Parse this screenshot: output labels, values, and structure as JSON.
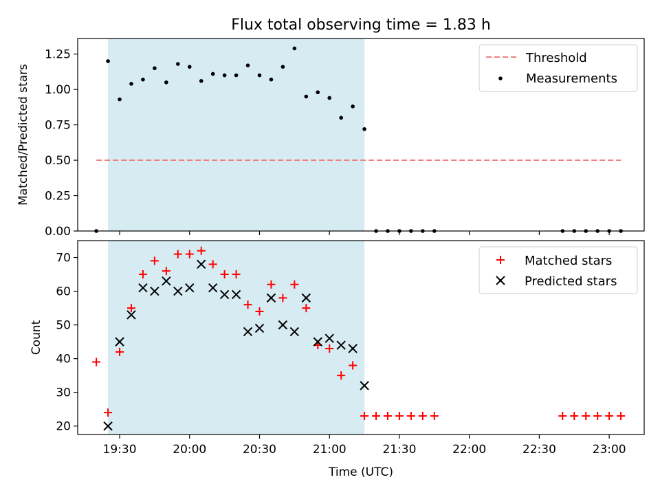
{
  "chart_data": [
    {
      "type": "scatter",
      "title": "Flux total observing time = 1.83 h",
      "xlabel": "",
      "ylabel": "Matched/Predicted stars",
      "ylim": [
        0.0,
        1.36
      ],
      "yticks": [
        0.0,
        0.25,
        0.5,
        0.75,
        1.0,
        1.25
      ],
      "ytick_labels": [
        "0.00",
        "0.25",
        "0.50",
        "0.75",
        "1.00",
        "1.25"
      ],
      "xlim": [
        "19:12",
        "23:15"
      ],
      "xticks": [
        "19:30",
        "20:00",
        "20:30",
        "21:00",
        "21:30",
        "22:00",
        "22:30",
        "23:00"
      ],
      "shaded_interval": {
        "x": [
          "19:25",
          "21:15"
        ],
        "color": "#add8e6"
      },
      "legend_position": "top-right",
      "grid": false,
      "series": [
        {
          "name": "Threshold",
          "kind": "dashed-line",
          "color": "#f08080",
          "x": [
            "19:20",
            "23:05"
          ],
          "y": [
            0.5,
            0.5
          ]
        },
        {
          "name": "Measurements",
          "kind": "dot",
          "color": "#000000",
          "x": [
            "19:20",
            "19:25",
            "19:30",
            "19:35",
            "19:40",
            "19:45",
            "19:50",
            "19:55",
            "20:00",
            "20:05",
            "20:10",
            "20:15",
            "20:20",
            "20:25",
            "20:30",
            "20:35",
            "20:40",
            "20:45",
            "20:50",
            "20:55",
            "21:00",
            "21:05",
            "21:10",
            "21:15",
            "21:20",
            "21:25",
            "21:30",
            "21:35",
            "21:40",
            "21:45",
            "22:40",
            "22:45",
            "22:50",
            "22:55",
            "23:00",
            "23:05"
          ],
          "y": [
            0.0,
            1.2,
            0.93,
            1.04,
            1.07,
            1.15,
            1.05,
            1.18,
            1.16,
            1.06,
            1.11,
            1.1,
            1.1,
            1.17,
            1.1,
            1.07,
            1.16,
            1.29,
            0.95,
            0.98,
            0.94,
            0.8,
            0.88,
            0.72,
            0.0,
            0.0,
            0.0,
            0.0,
            0.0,
            0.0,
            0.0,
            0.0,
            0.0,
            0.0,
            0.0,
            0.0
          ]
        }
      ]
    },
    {
      "type": "scatter",
      "title": "",
      "xlabel": "Time (UTC)",
      "ylabel": "Count",
      "ylim": [
        17.5,
        75.0
      ],
      "yticks": [
        20,
        30,
        40,
        50,
        60,
        70
      ],
      "ytick_labels": [
        "20",
        "30",
        "40",
        "50",
        "60",
        "70"
      ],
      "xlim": [
        "19:12",
        "23:15"
      ],
      "xticks": [
        "19:30",
        "20:00",
        "20:30",
        "21:00",
        "21:30",
        "22:00",
        "22:30",
        "23:00"
      ],
      "xtick_labels": [
        "19:30",
        "20:00",
        "20:30",
        "21:00",
        "21:30",
        "22:00",
        "22:30",
        "23:00"
      ],
      "shaded_interval": {
        "x": [
          "19:25",
          "21:15"
        ],
        "color": "#add8e6"
      },
      "legend_position": "top-right",
      "grid": false,
      "series": [
        {
          "name": "Matched stars",
          "kind": "plus",
          "color": "#ff0000",
          "x": [
            "19:20",
            "19:25",
            "19:30",
            "19:35",
            "19:40",
            "19:45",
            "19:50",
            "19:55",
            "20:00",
            "20:05",
            "20:10",
            "20:15",
            "20:20",
            "20:25",
            "20:30",
            "20:35",
            "20:40",
            "20:45",
            "20:50",
            "20:55",
            "21:00",
            "21:05",
            "21:10",
            "21:15",
            "21:20",
            "21:25",
            "21:30",
            "21:35",
            "21:40",
            "21:45",
            "22:40",
            "22:45",
            "22:50",
            "22:55",
            "23:00",
            "23:05"
          ],
          "y": [
            39,
            24,
            42,
            55,
            65,
            69,
            66,
            71,
            71,
            72,
            68,
            65,
            65,
            56,
            54,
            62,
            58,
            62,
            55,
            44,
            43,
            35,
            38,
            23,
            23,
            23,
            23,
            23,
            23,
            23,
            23,
            23,
            23,
            23,
            23,
            23
          ]
        },
        {
          "name": "Predicted stars",
          "kind": "x",
          "color": "#000000",
          "x": [
            "19:25",
            "19:30",
            "19:35",
            "19:40",
            "19:45",
            "19:50",
            "19:55",
            "20:00",
            "20:05",
            "20:10",
            "20:15",
            "20:20",
            "20:25",
            "20:30",
            "20:35",
            "20:40",
            "20:45",
            "20:50",
            "20:55",
            "21:00",
            "21:05",
            "21:10",
            "21:15"
          ],
          "y": [
            20,
            45,
            53,
            61,
            60,
            63,
            60,
            61,
            68,
            61,
            59,
            59,
            48,
            49,
            58,
            50,
            48,
            58,
            45,
            46,
            44,
            43,
            32
          ]
        }
      ]
    }
  ]
}
